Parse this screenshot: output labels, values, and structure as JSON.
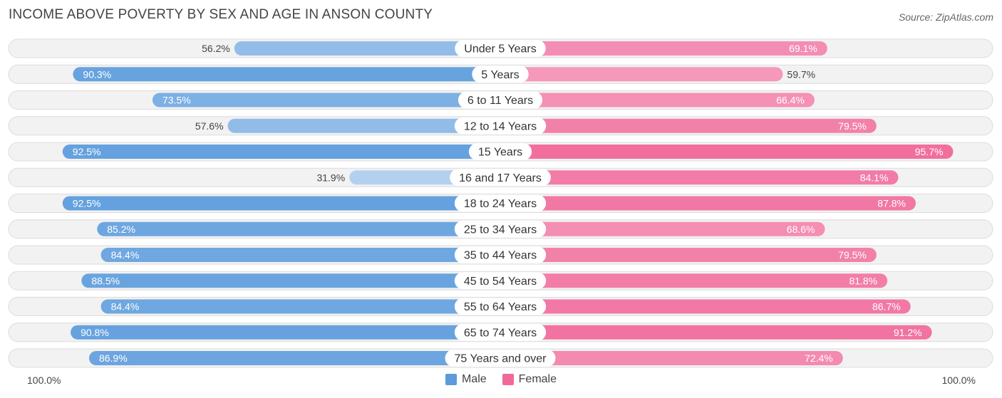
{
  "title": "INCOME ABOVE POVERTY BY SEX AND AGE IN ANSON COUNTY",
  "source": "Source: ZipAtlas.com",
  "axis": {
    "left_label": "100.0%",
    "right_label": "100.0%"
  },
  "legend": {
    "male_label": "Male",
    "female_label": "Female",
    "male_color": "#5b9bdc",
    "female_color": "#f0699a"
  },
  "chart_data": {
    "type": "bar",
    "orientation": "horizontal-diverging",
    "title": "INCOME ABOVE POVERTY BY SEX AND AGE IN ANSON COUNTY",
    "categories": [
      "Under 5 Years",
      "5 Years",
      "6 to 11 Years",
      "12 to 14 Years",
      "15 Years",
      "16 and 17 Years",
      "18 to 24 Years",
      "25 to 34 Years",
      "35 to 44 Years",
      "45 to 54 Years",
      "55 to 64 Years",
      "65 to 74 Years",
      "75 Years and over"
    ],
    "series": [
      {
        "name": "Male",
        "values": [
          56.2,
          90.3,
          73.5,
          57.6,
          92.5,
          31.9,
          92.5,
          85.2,
          84.4,
          88.5,
          84.4,
          90.8,
          86.9
        ]
      },
      {
        "name": "Female",
        "values": [
          69.1,
          59.7,
          66.4,
          79.5,
          95.7,
          84.1,
          87.8,
          68.6,
          79.5,
          81.8,
          86.7,
          91.2,
          72.4
        ]
      }
    ],
    "value_labels": {
      "male": [
        "56.2%",
        "90.3%",
        "73.5%",
        "57.6%",
        "92.5%",
        "31.9%",
        "92.5%",
        "85.2%",
        "84.4%",
        "88.5%",
        "84.4%",
        "90.8%",
        "86.9%"
      ],
      "female": [
        "69.1%",
        "59.7%",
        "66.4%",
        "79.5%",
        "95.7%",
        "84.1%",
        "87.8%",
        "68.6%",
        "79.5%",
        "81.8%",
        "86.7%",
        "91.2%",
        "72.4%"
      ]
    },
    "xlim": [
      0,
      100
    ],
    "unit": "%",
    "legend_position": "bottom-center"
  }
}
